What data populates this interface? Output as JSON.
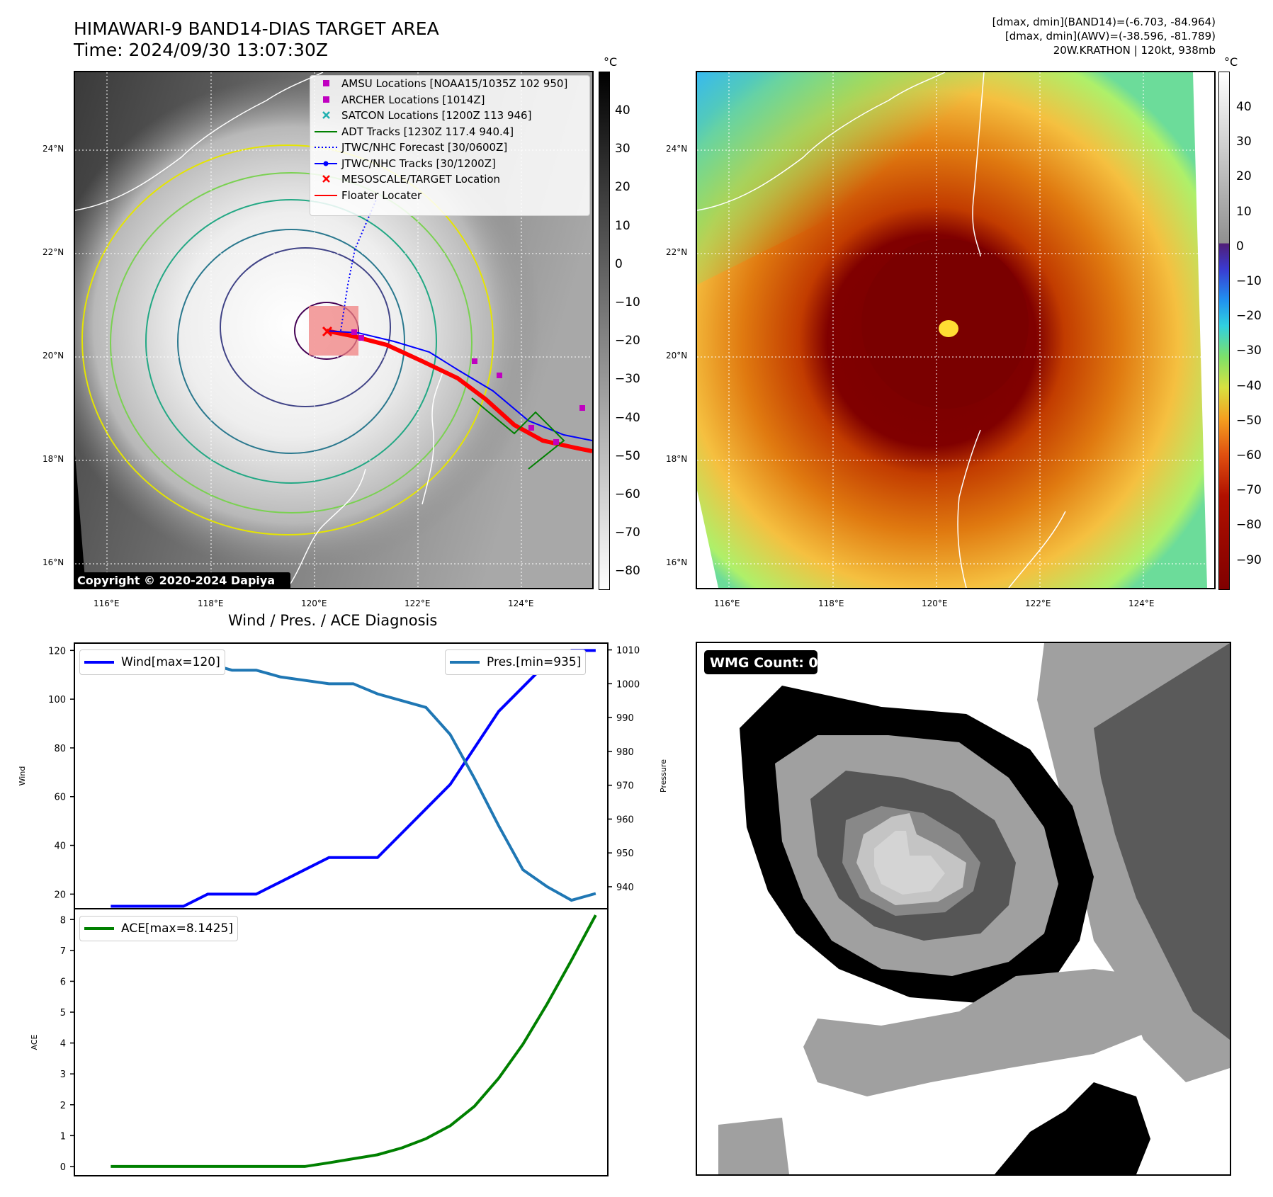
{
  "header": {
    "title_line1": "HIMAWARI-9 BAND14-DIAS TARGET AREA",
    "title_line2": "Time: 2024/09/30 13:07:30Z",
    "info_line1": "[dmax, dmin](BAND14)=(-6.703, -84.964)",
    "info_line2": "[dmax, dmin](AWV)=(-38.596, -81.789)",
    "info_line3": "20W.KRATHON | 120kt, 938mb"
  },
  "map": {
    "lon_labels": [
      "116°E",
      "118°E",
      "120°E",
      "122°E",
      "124°E"
    ],
    "lat_labels": [
      "24°N",
      "22°N",
      "20°N",
      "18°N",
      "16°N"
    ],
    "copyright": "Copyright © 2020-2024 Dapiya"
  },
  "left_colorbar": {
    "unit": "°C",
    "ticks": [
      "40",
      "30",
      "20",
      "10",
      "0",
      "−10",
      "−20",
      "−30",
      "−40",
      "−50",
      "−60",
      "−70",
      "−80"
    ]
  },
  "right_colorbar": {
    "unit": "°C",
    "ticks": [
      "40",
      "30",
      "20",
      "10",
      "0",
      "−10",
      "−20",
      "−30",
      "−40",
      "−50",
      "−60",
      "−70",
      "−80",
      "−90"
    ]
  },
  "legend": {
    "items": [
      {
        "label": "AMSU Locations [NOAA15/1035Z 102 950]",
        "symbol": "square",
        "color": "#c000c0"
      },
      {
        "label": "ARCHER Locations [1014Z]",
        "symbol": "square",
        "color": "#c000c0"
      },
      {
        "label": "SATCON Locations [1200Z 113 946]",
        "symbol": "x",
        "color": "#20b0b0"
      },
      {
        "label": "ADT Tracks [1230Z 117.4 940.4]",
        "symbol": "line",
        "color": "#008000"
      },
      {
        "label": "JTWC/NHC Forecast [30/0600Z]",
        "symbol": "dotted",
        "color": "#0000ff"
      },
      {
        "label": "JTWC/NHC Tracks [30/1200Z]",
        "symbol": "line-dot",
        "color": "#0000ff"
      },
      {
        "label": "MESOSCALE/TARGET Location",
        "symbol": "x",
        "color": "#ff0000"
      },
      {
        "label": "Floater Locater",
        "symbol": "line",
        "color": "#ff0000"
      }
    ]
  },
  "diagnosis_title": "Wind / Pres. / ACE Diagnosis",
  "wmg_label": "WMG Count: 0",
  "chart_data": [
    {
      "type": "line",
      "title": "Wind / Pres. / ACE Diagnosis",
      "xlabel": "",
      "ylabel": "Wind",
      "y2label": "Pressure",
      "ylim": [
        14,
        123
      ],
      "y2lim": [
        933.5,
        1012
      ],
      "yticks": [
        "120",
        "100",
        "80",
        "60",
        "40",
        "20"
      ],
      "y2ticks": [
        "1010",
        "1000",
        "990",
        "980",
        "970",
        "960",
        "950",
        "940"
      ],
      "x": [
        0,
        1,
        2,
        3,
        4,
        5,
        6,
        7,
        8,
        9,
        10,
        11,
        12,
        13,
        14,
        15,
        16,
        17,
        18,
        19,
        20
      ],
      "series": [
        {
          "name": "Wind[max=120]",
          "axis": "left",
          "color": "#0000ff",
          "values": [
            15,
            15,
            15,
            15,
            20,
            20,
            20,
            25,
            30,
            35,
            35,
            35,
            45,
            55,
            65,
            80,
            95,
            105,
            115,
            120,
            120
          ]
        },
        {
          "name": "Pres.[min=935]",
          "axis": "right",
          "color": "#1f77b4",
          "values": [
            1008,
            1008,
            1008,
            1006,
            1006,
            1004,
            1004,
            1002,
            1001,
            1000,
            1000,
            997,
            995,
            993,
            985,
            972,
            958,
            945,
            940,
            936,
            938
          ]
        }
      ]
    },
    {
      "type": "line",
      "title": "",
      "xlabel": "",
      "ylabel": "ACE",
      "ylim": [
        -0.3,
        8.35
      ],
      "yticks": [
        "8",
        "7",
        "6",
        "5",
        "4",
        "3",
        "2",
        "1",
        "0"
      ],
      "x": [
        0,
        1,
        2,
        3,
        4,
        5,
        6,
        7,
        8,
        9,
        10,
        11,
        12,
        13,
        14,
        15,
        16,
        17,
        18,
        19,
        20
      ],
      "series": [
        {
          "name": "ACE[max=8.1425]",
          "color": "#008000",
          "values": [
            0,
            0,
            0,
            0,
            0,
            0,
            0,
            0,
            0,
            0.12,
            0.25,
            0.38,
            0.6,
            0.9,
            1.32,
            1.95,
            2.86,
            3.96,
            5.27,
            6.68,
            8.1425
          ]
        }
      ]
    }
  ]
}
